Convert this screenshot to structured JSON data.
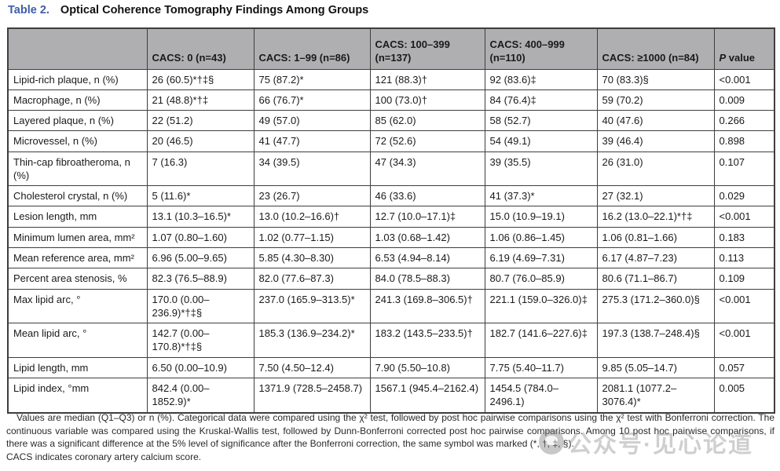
{
  "title": {
    "label": "Table 2.",
    "text": "Optical Coherence Tomography Findings Among Groups"
  },
  "accent_colors": {
    "title_blue": "#3d5da8",
    "header_gray": "#afafb2",
    "border": "#3e3e3e"
  },
  "table": {
    "columns": [
      "",
      "CACS: 0 (n=43)",
      "CACS: 1–99 (n=86)",
      "CACS: 100–399 (n=137)",
      "CACS: 400–999 (n=110)",
      "CACS: ≥1000 (n=84)",
      "P value"
    ],
    "rows": [
      {
        "label": "Lipid-rich plaque, n (%)",
        "values": [
          "26 (60.5)*†‡§",
          "75 (87.2)*",
          "121 (88.3)†",
          "92 (83.6)‡",
          "70 (83.3)§",
          "<0.001"
        ]
      },
      {
        "label": "Macrophage, n (%)",
        "values": [
          "21 (48.8)*†‡",
          "66 (76.7)*",
          "100 (73.0)†",
          "84 (76.4)‡",
          "59 (70.2)",
          "0.009"
        ]
      },
      {
        "label": "Layered plaque, n (%)",
        "values": [
          "22 (51.2)",
          "49 (57.0)",
          "85 (62.0)",
          "58 (52.7)",
          "40 (47.6)",
          "0.266"
        ]
      },
      {
        "label": "Microvessel, n (%)",
        "values": [
          "20 (46.5)",
          "41 (47.7)",
          "72 (52.6)",
          "54 (49.1)",
          "39 (46.4)",
          "0.898"
        ]
      },
      {
        "label": "Thin-cap fibroatheroma, n (%)",
        "values": [
          "7 (16.3)",
          "34 (39.5)",
          "47 (34.3)",
          "39 (35.5)",
          "26 (31.0)",
          "0.107"
        ]
      },
      {
        "label": "Cholesterol crystal, n (%)",
        "values": [
          "5 (11.6)*",
          "23 (26.7)",
          "46 (33.6)",
          "41 (37.3)*",
          "27 (32.1)",
          "0.029"
        ]
      },
      {
        "label": "Lesion length, mm",
        "values": [
          "13.1 (10.3–16.5)*",
          "13.0 (10.2–16.6)†",
          "12.7 (10.0–17.1)‡",
          "15.0 (10.9–19.1)",
          "16.2 (13.0–22.1)*†‡",
          "<0.001"
        ]
      },
      {
        "label": "Minimum lumen area, mm²",
        "values": [
          "1.07 (0.80–1.60)",
          "1.02 (0.77–1.15)",
          "1.03 (0.68–1.42)",
          "1.06 (0.86–1.45)",
          "1.06 (0.81–1.66)",
          "0.183"
        ]
      },
      {
        "label": "Mean reference area, mm²",
        "values": [
          "6.96 (5.00–9.65)",
          "5.85 (4.30–8.30)",
          "6.53 (4.94–8.14)",
          "6.19 (4.69–7.31)",
          "6.17 (4.87–7.23)",
          "0.113"
        ]
      },
      {
        "label": "Percent area stenosis, %",
        "values": [
          "82.3 (76.5–88.9)",
          "82.0 (77.6–87.3)",
          "84.0 (78.5–88.3)",
          "80.7 (76.0–85.9)",
          "80.6 (71.1–86.7)",
          "0.109"
        ]
      },
      {
        "label": "Max lipid arc, °",
        "values": [
          "170.0 (0.00–236.9)*†‡§",
          "237.0 (165.9–313.5)*",
          "241.3 (169.8–306.5)†",
          "221.1 (159.0–326.0)‡",
          "275.3 (171.2–360.0)§",
          "<0.001"
        ]
      },
      {
        "label": "Mean lipid arc, °",
        "values": [
          "142.7 (0.00–170.8)*†‡§",
          "185.3 (136.9–234.2)*",
          "183.2 (143.5–233.5)†",
          "182.7 (141.6–227.6)‡",
          "197.3 (138.7–248.4)§",
          "<0.001"
        ]
      },
      {
        "label": "Lipid length, mm",
        "values": [
          "6.50 (0.00–10.9)",
          "7.50 (4.50–12.4)",
          "7.90 (5.50–10.8)",
          "7.75 (5.40–11.7)",
          "9.85 (5.05–14.7)",
          "0.057"
        ]
      },
      {
        "label": "Lipid index, °mm",
        "values": [
          "842.4 (0.00–1852.9)*",
          "1371.9 (728.5–2458.7)",
          "1567.1 (945.4–2162.4)",
          "1454.5 (784.0–2496.1)",
          "2081.1 (1077.2–3076.4)*",
          "0.005"
        ]
      }
    ]
  },
  "footnote": {
    "para1": "Values are median (Q1–Q3) or n (%). Categorical data were compared using the χ² test, followed by post hoc pairwise comparisons using the χ² test with Bonferroni correction. The continuous variable was compared using the Kruskal-Wallis test, followed by Dunn-Bonferroni corrected post hoc pairwise comparisons. Among 10 post hoc pairwise comparisons, if there was a significant difference at the 5% level of significance after the Bonferroni correction, the same symbol was marked (*, †, ‡, §).",
    "para2": "CACS indicates coronary artery calcium score."
  },
  "watermark": {
    "text": "公众号·见心论道"
  }
}
